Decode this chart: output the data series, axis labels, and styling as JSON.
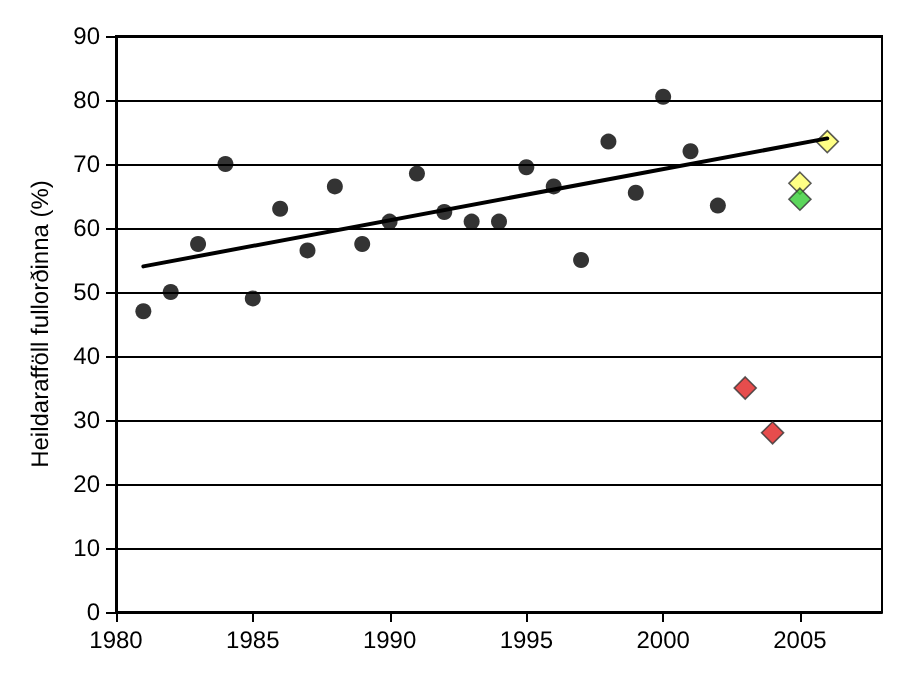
{
  "chart_data": {
    "type": "scatter",
    "ylabel": "Heildarafföll fullorðinna (%)",
    "xlim": [
      1980,
      2008
    ],
    "xticks": [
      1980,
      1985,
      1990,
      1995,
      2000,
      2005
    ],
    "ylim": [
      0,
      90
    ],
    "yticks": [
      0,
      10,
      20,
      30,
      40,
      50,
      60,
      70,
      80,
      90
    ],
    "grid": "y",
    "series": [
      {
        "marker": "circle",
        "color": "#000000",
        "x": [
          1981,
          1982,
          1983,
          1984,
          1985,
          1986,
          1987,
          1988,
          1989,
          1990,
          1991,
          1992,
          1993,
          1994,
          1995,
          1996,
          1997,
          1998,
          1999,
          2000,
          2001,
          2002
        ],
        "values": [
          47,
          50,
          57.5,
          70,
          49,
          63,
          56.5,
          66.5,
          57.5,
          61,
          68.5,
          62.5,
          61,
          61,
          69.5,
          66.5,
          55,
          73.5,
          65.5,
          80.5,
          72,
          63.5
        ]
      },
      {
        "type": "line",
        "marker": "none",
        "line_style": "solid",
        "color": "#000000",
        "x": [
          1981,
          2006
        ],
        "values": [
          54,
          74
        ]
      },
      {
        "marker": "diamond",
        "color": "#e02020",
        "x": [
          2003,
          2004
        ],
        "values": [
          35,
          28
        ]
      },
      {
        "marker": "diamond",
        "color": "#ffff66",
        "x": [
          2005,
          2006
        ],
        "values": [
          67,
          73.5
        ]
      },
      {
        "marker": "diamond",
        "color": "#33cc33",
        "x": [
          2005
        ],
        "values": [
          64.5
        ]
      }
    ]
  }
}
